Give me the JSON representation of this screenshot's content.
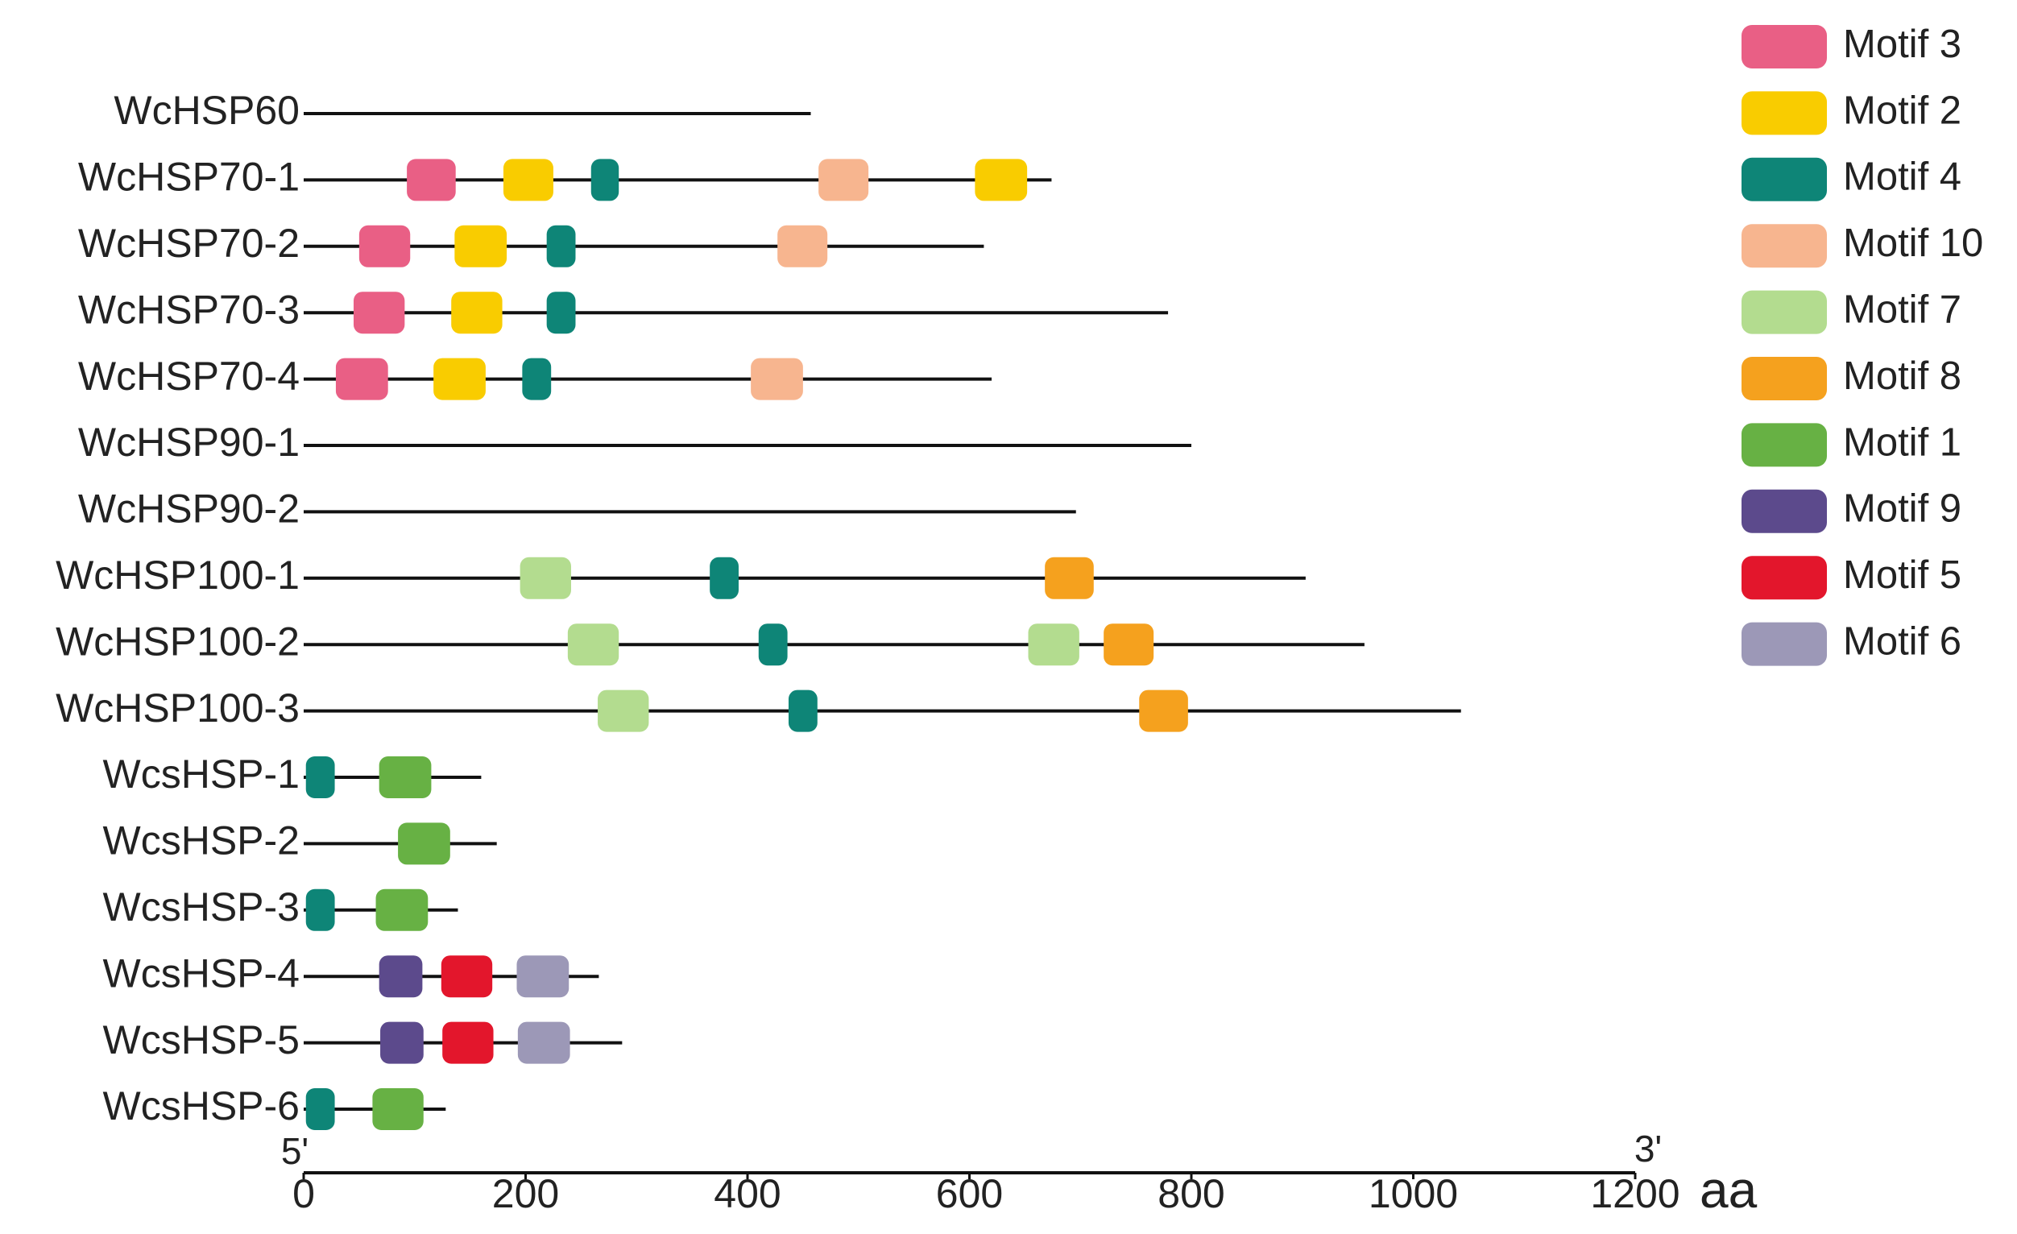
{
  "chart_data": {
    "type": "motif",
    "xlim": [
      0,
      1200
    ],
    "xticks": [
      0,
      200,
      400,
      600,
      800,
      1000,
      1200
    ],
    "x_unit_label": "aa",
    "start_label": "5'",
    "end_label": "3'",
    "legend": [
      {
        "name": "Motif 3",
        "color": "#e95f85"
      },
      {
        "name": "Motif 2",
        "color": "#f9cc00"
      },
      {
        "name": "Motif 4",
        "color": "#0e8577"
      },
      {
        "name": "Motif 10",
        "color": "#f7b58f"
      },
      {
        "name": "Motif 7",
        "color": "#b3dc8f"
      },
      {
        "name": "Motif 8",
        "color": "#f5a11e"
      },
      {
        "name": "Motif 1",
        "color": "#67b144"
      },
      {
        "name": "Motif 9",
        "color": "#5c4a8c"
      },
      {
        "name": "Motif 5",
        "color": "#e3162c"
      },
      {
        "name": "Motif 6",
        "color": "#9c98b7"
      }
    ],
    "proteins": [
      {
        "name": "WcHSP60",
        "length": 457,
        "motifs": []
      },
      {
        "name": "WcHSP70-1",
        "length": 674,
        "motifs": [
          {
            "motif": "Motif 3",
            "start": 93,
            "end": 137
          },
          {
            "motif": "Motif 2",
            "start": 180,
            "end": 225
          },
          {
            "motif": "Motif 4",
            "start": 259,
            "end": 284
          },
          {
            "motif": "Motif 10",
            "start": 464,
            "end": 509
          },
          {
            "motif": "Motif 2",
            "start": 605,
            "end": 652
          }
        ]
      },
      {
        "name": "WcHSP70-2",
        "length": 613,
        "motifs": [
          {
            "motif": "Motif 3",
            "start": 50,
            "end": 96
          },
          {
            "motif": "Motif 2",
            "start": 136,
            "end": 183
          },
          {
            "motif": "Motif 4",
            "start": 219,
            "end": 245
          },
          {
            "motif": "Motif 10",
            "start": 427,
            "end": 472
          }
        ]
      },
      {
        "name": "WcHSP70-3",
        "length": 779,
        "motifs": [
          {
            "motif": "Motif 3",
            "start": 45,
            "end": 91
          },
          {
            "motif": "Motif 2",
            "start": 133,
            "end": 179
          },
          {
            "motif": "Motif 4",
            "start": 219,
            "end": 245
          }
        ]
      },
      {
        "name": "WcHSP70-4",
        "length": 620,
        "motifs": [
          {
            "motif": "Motif 3",
            "start": 29,
            "end": 76
          },
          {
            "motif": "Motif 2",
            "start": 117,
            "end": 164
          },
          {
            "motif": "Motif 4",
            "start": 197,
            "end": 223
          },
          {
            "motif": "Motif 10",
            "start": 403,
            "end": 450
          }
        ]
      },
      {
        "name": "WcHSP90-1",
        "length": 800,
        "motifs": []
      },
      {
        "name": "WcHSP90-2",
        "length": 696,
        "motifs": []
      },
      {
        "name": "WcHSP100-1",
        "length": 903,
        "motifs": [
          {
            "motif": "Motif 7",
            "start": 195,
            "end": 241
          },
          {
            "motif": "Motif 4",
            "start": 366,
            "end": 392
          },
          {
            "motif": "Motif 8",
            "start": 668,
            "end": 712
          }
        ]
      },
      {
        "name": "WcHSP100-2",
        "length": 956,
        "motifs": [
          {
            "motif": "Motif 7",
            "start": 238,
            "end": 284
          },
          {
            "motif": "Motif 4",
            "start": 410,
            "end": 436
          },
          {
            "motif": "Motif 7",
            "start": 653,
            "end": 699
          },
          {
            "motif": "Motif 8",
            "start": 721,
            "end": 766
          }
        ]
      },
      {
        "name": "WcHSP100-3",
        "length": 1043,
        "motifs": [
          {
            "motif": "Motif 7",
            "start": 265,
            "end": 311
          },
          {
            "motif": "Motif 4",
            "start": 437,
            "end": 463
          },
          {
            "motif": "Motif 8",
            "start": 753,
            "end": 797
          }
        ]
      },
      {
        "name": "WcsHSP-1",
        "length": 160,
        "motifs": [
          {
            "motif": "Motif 4",
            "start": 2,
            "end": 28
          },
          {
            "motif": "Motif 1",
            "start": 68,
            "end": 115
          }
        ]
      },
      {
        "name": "WcsHSP-2",
        "length": 174,
        "motifs": [
          {
            "motif": "Motif 1",
            "start": 85,
            "end": 132
          }
        ]
      },
      {
        "name": "WcsHSP-3",
        "length": 139,
        "motifs": [
          {
            "motif": "Motif 4",
            "start": 2,
            "end": 28
          },
          {
            "motif": "Motif 1",
            "start": 65,
            "end": 112
          }
        ]
      },
      {
        "name": "WcsHSP-4",
        "length": 266,
        "motifs": [
          {
            "motif": "Motif 9",
            "start": 68,
            "end": 107
          },
          {
            "motif": "Motif 5",
            "start": 124,
            "end": 170
          },
          {
            "motif": "Motif 6",
            "start": 192,
            "end": 239
          }
        ]
      },
      {
        "name": "WcsHSP-5",
        "length": 287,
        "motifs": [
          {
            "motif": "Motif 9",
            "start": 69,
            "end": 108
          },
          {
            "motif": "Motif 5",
            "start": 125,
            "end": 171
          },
          {
            "motif": "Motif 6",
            "start": 193,
            "end": 240
          }
        ]
      },
      {
        "name": "WcsHSP-6",
        "length": 128,
        "motifs": [
          {
            "motif": "Motif 4",
            "start": 2,
            "end": 28
          },
          {
            "motif": "Motif 1",
            "start": 62,
            "end": 108
          }
        ]
      }
    ]
  }
}
